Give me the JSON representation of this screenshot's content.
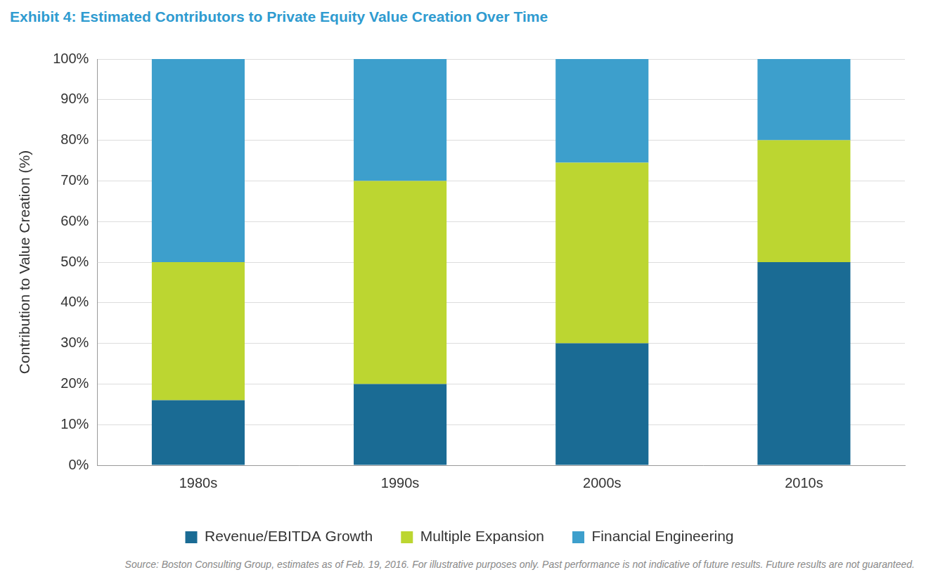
{
  "chart_data": {
    "type": "bar",
    "stacked": true,
    "title": "Exhibit 4: Estimated Contributors to Private Equity Value Creation Over Time",
    "y_label": "Contribution to Value Creation (%)",
    "source": "Source: Boston Consulting Group, estimates as of Feb. 19, 2016. For illustrative purposes only. Past performance is not indicative of future results. Future results are not guaranteed.",
    "categories": [
      "1980s",
      "1990s",
      "2000s",
      "2010s"
    ],
    "series": [
      {
        "name": "Revenue/EBITDA Growth",
        "color": "#1a6b94",
        "values": [
          16,
          20,
          30,
          50
        ]
      },
      {
        "name": "Multiple Expansion",
        "color": "#bcd631",
        "values": [
          34,
          50,
          44.5,
          30
        ]
      },
      {
        "name": "Financial Engineering",
        "color": "#3d9fcc",
        "values": [
          50,
          30,
          25.5,
          20
        ]
      }
    ],
    "ylim": [
      0,
      100
    ],
    "yticks": [
      {
        "value": 0,
        "label": "0%"
      },
      {
        "value": 10,
        "label": "10%"
      },
      {
        "value": 20,
        "label": "20%"
      },
      {
        "value": 30,
        "label": "30%"
      },
      {
        "value": 40,
        "label": "40%"
      },
      {
        "value": 50,
        "label": "50%"
      },
      {
        "value": 60,
        "label": "60%"
      },
      {
        "value": 70,
        "label": "70%"
      },
      {
        "value": 80,
        "label": "80%"
      },
      {
        "value": 90,
        "label": "90%"
      },
      {
        "value": 100,
        "label": "100%"
      }
    ],
    "grid": true,
    "legend": "bottom"
  }
}
